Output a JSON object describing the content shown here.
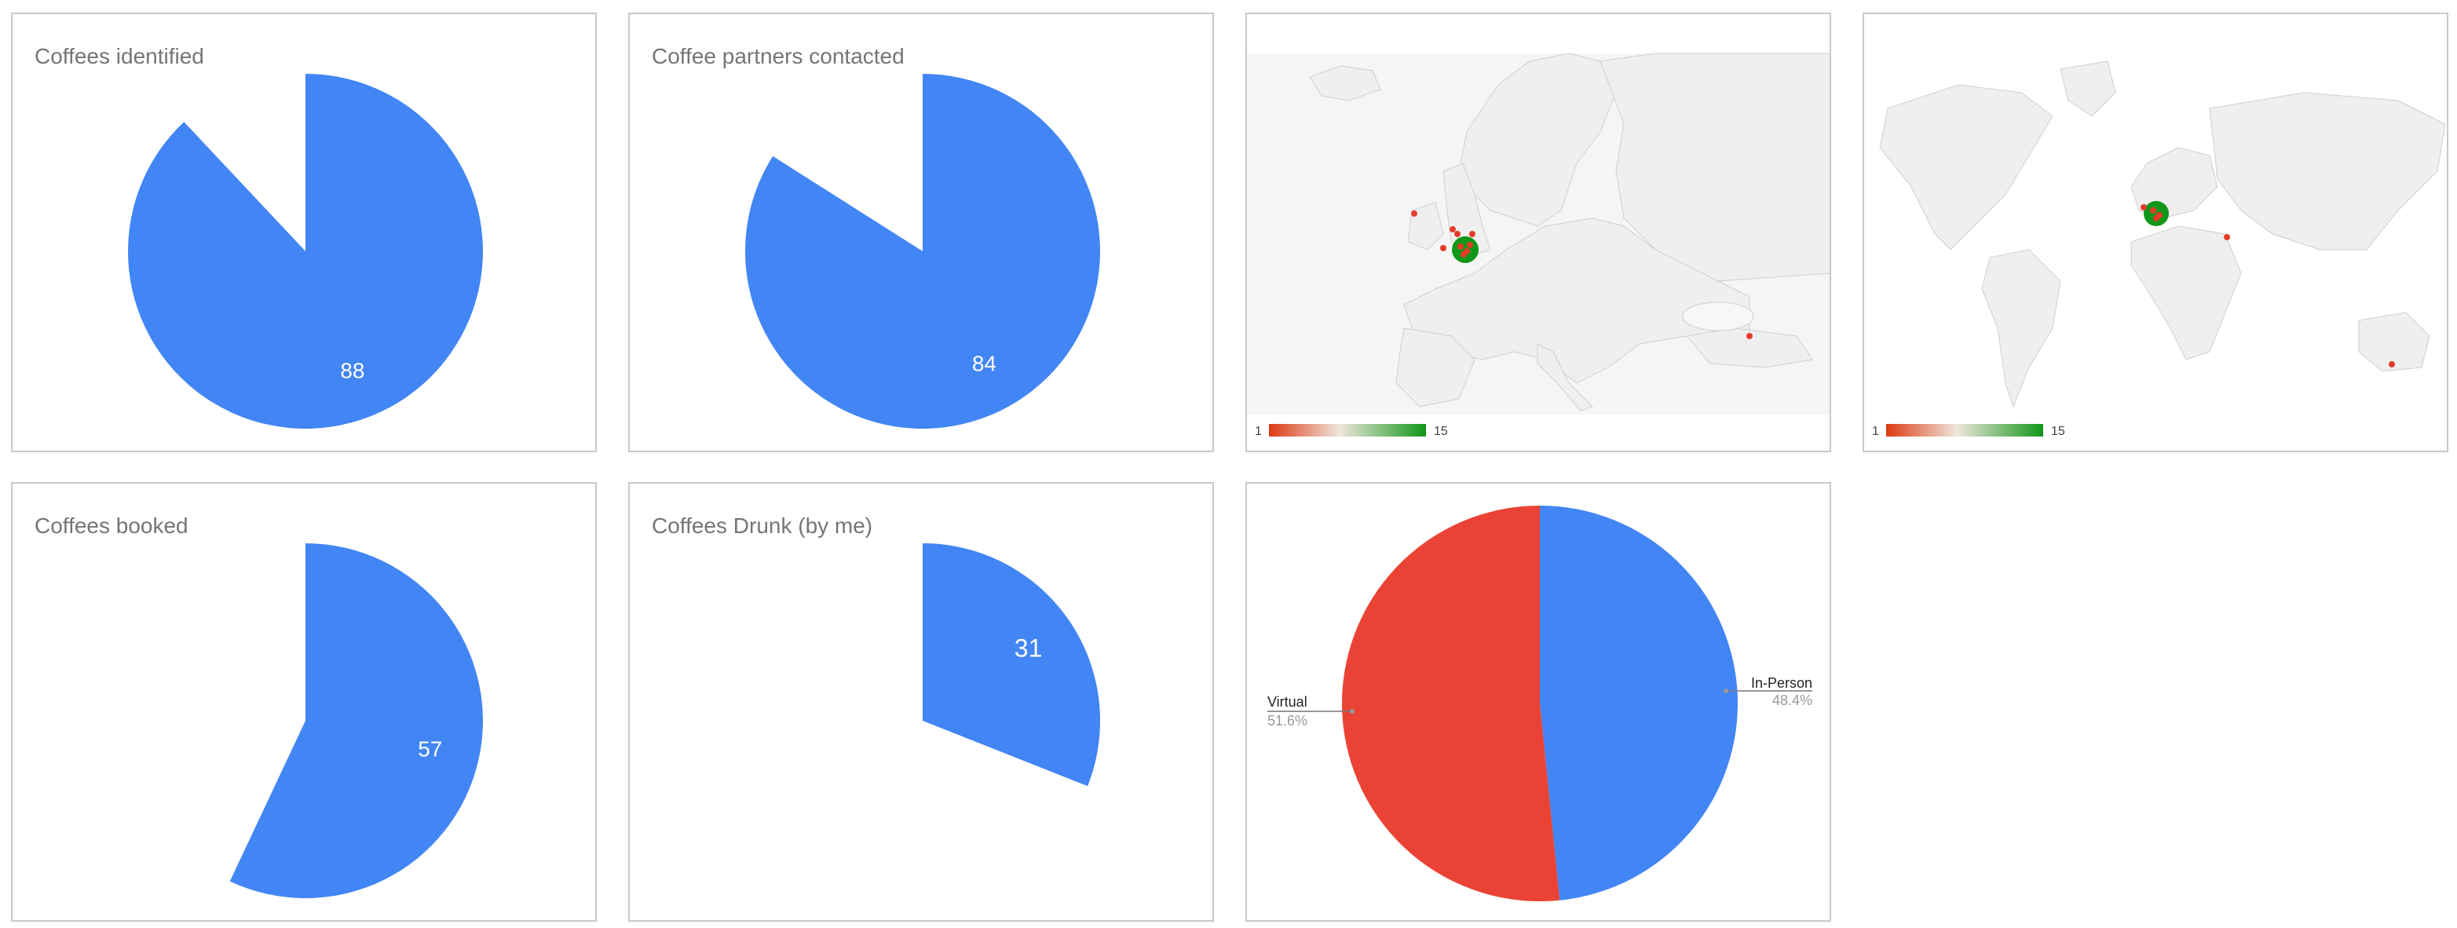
{
  "colors": {
    "blue": "#4285f4",
    "red": "#ea4335",
    "green": "#109618",
    "land": "#f1f1f1",
    "border": "#d7d7d7",
    "marker": "#e53b2a"
  },
  "chart_data": [
    {
      "type": "pie",
      "title": "Coffees identified",
      "value": 88,
      "max": 100,
      "label": "88"
    },
    {
      "type": "pie",
      "title": "Coffee partners contacted",
      "value": 84,
      "max": 100,
      "label": "84"
    },
    {
      "type": "geo",
      "region": "europe",
      "legend": {
        "min": "1",
        "max": "15"
      }
    },
    {
      "type": "geo",
      "region": "world",
      "legend": {
        "min": "1",
        "max": "15"
      }
    },
    {
      "type": "pie",
      "title": "Coffees booked",
      "value": 57,
      "max": 100,
      "label": "57"
    },
    {
      "type": "pie",
      "title": "Coffees Drunk (by me)",
      "value": 31,
      "max": 100,
      "label": "31"
    },
    {
      "type": "pie",
      "title": "",
      "slices": [
        {
          "name": "In-Person",
          "percent": "48.4%",
          "value": 48.4
        },
        {
          "name": "Virtual",
          "percent": "51.6%",
          "value": 51.6
        }
      ]
    }
  ]
}
